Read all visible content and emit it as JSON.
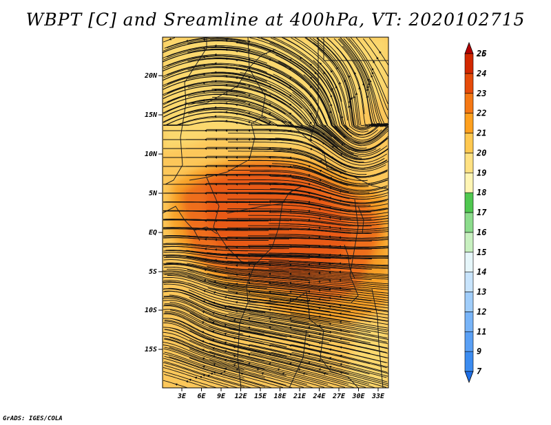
{
  "title": "WBPT [C] and Sreamline at 400hPa, VT: 2020102715",
  "credit": "GrADS: IGES/COLA",
  "map": {
    "variable": "WBPT [C]",
    "level": "400hPa",
    "valid_time": "2020102715",
    "region": "Central Africa",
    "lat_labels": [
      "20N",
      "15N",
      "10N",
      "5N",
      "EQ",
      "5S",
      "10S",
      "15S"
    ],
    "lon_labels": [
      "3E",
      "6E",
      "9E",
      "12E",
      "15E",
      "18E",
      "21E",
      "24E",
      "27E",
      "30E",
      "33E"
    ]
  },
  "colorbar": {
    "levels": [
      "7",
      "9",
      "11",
      "12",
      "13",
      "14",
      "15",
      "16",
      "17",
      "18",
      "19",
      "20",
      "21",
      "22",
      "23",
      "24",
      "25",
      "26"
    ],
    "colors": [
      "#1e6fe6",
      "#3c8cf0",
      "#5aa0f5",
      "#78b4f8",
      "#a0cdfa",
      "#c8e4fc",
      "#e6f6fa",
      "#c8f0c0",
      "#8cdc8c",
      "#50c850",
      "#fff5b4",
      "#ffe182",
      "#ffc850",
      "#ffa01e",
      "#f57814",
      "#e64b0a",
      "#d22800",
      "#b40000"
    ]
  },
  "colors": {
    "field_base": "#fcc75a",
    "field_warm": "#f7a028",
    "field_hot": "#ee6e1a",
    "field_hottest": "#e85a14",
    "field_cool": "#fbd86e",
    "border": "#222222",
    "streamline": "#111111"
  }
}
